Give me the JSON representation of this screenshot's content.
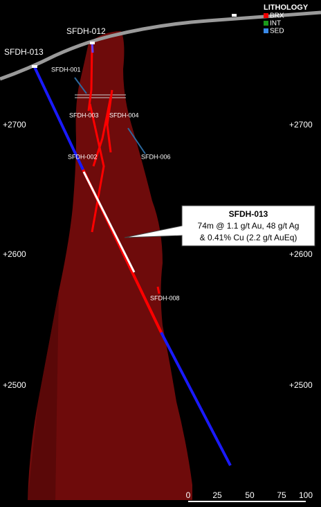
{
  "legend": {
    "title": "LITHOLOGY",
    "items": [
      "BRX",
      "INT",
      "SED"
    ]
  },
  "holes": [
    "SFDH-013",
    "SFDH-012",
    "SFDH-001",
    "SFDH-003",
    "SFDH-004",
    "SFDH-002",
    "SFDH-006",
    "SFDH-008"
  ],
  "elevations": [
    "+2700",
    "+2600",
    "+2500"
  ],
  "callout": {
    "title": "SFDH-013",
    "lines": [
      "74m @ 1.1 g/t Au, 48 g/t Ag",
      "& 0.41% Cu (2.2 g/t AuEq)"
    ]
  },
  "scale_bar": [
    0,
    25,
    50,
    75,
    100
  ]
}
